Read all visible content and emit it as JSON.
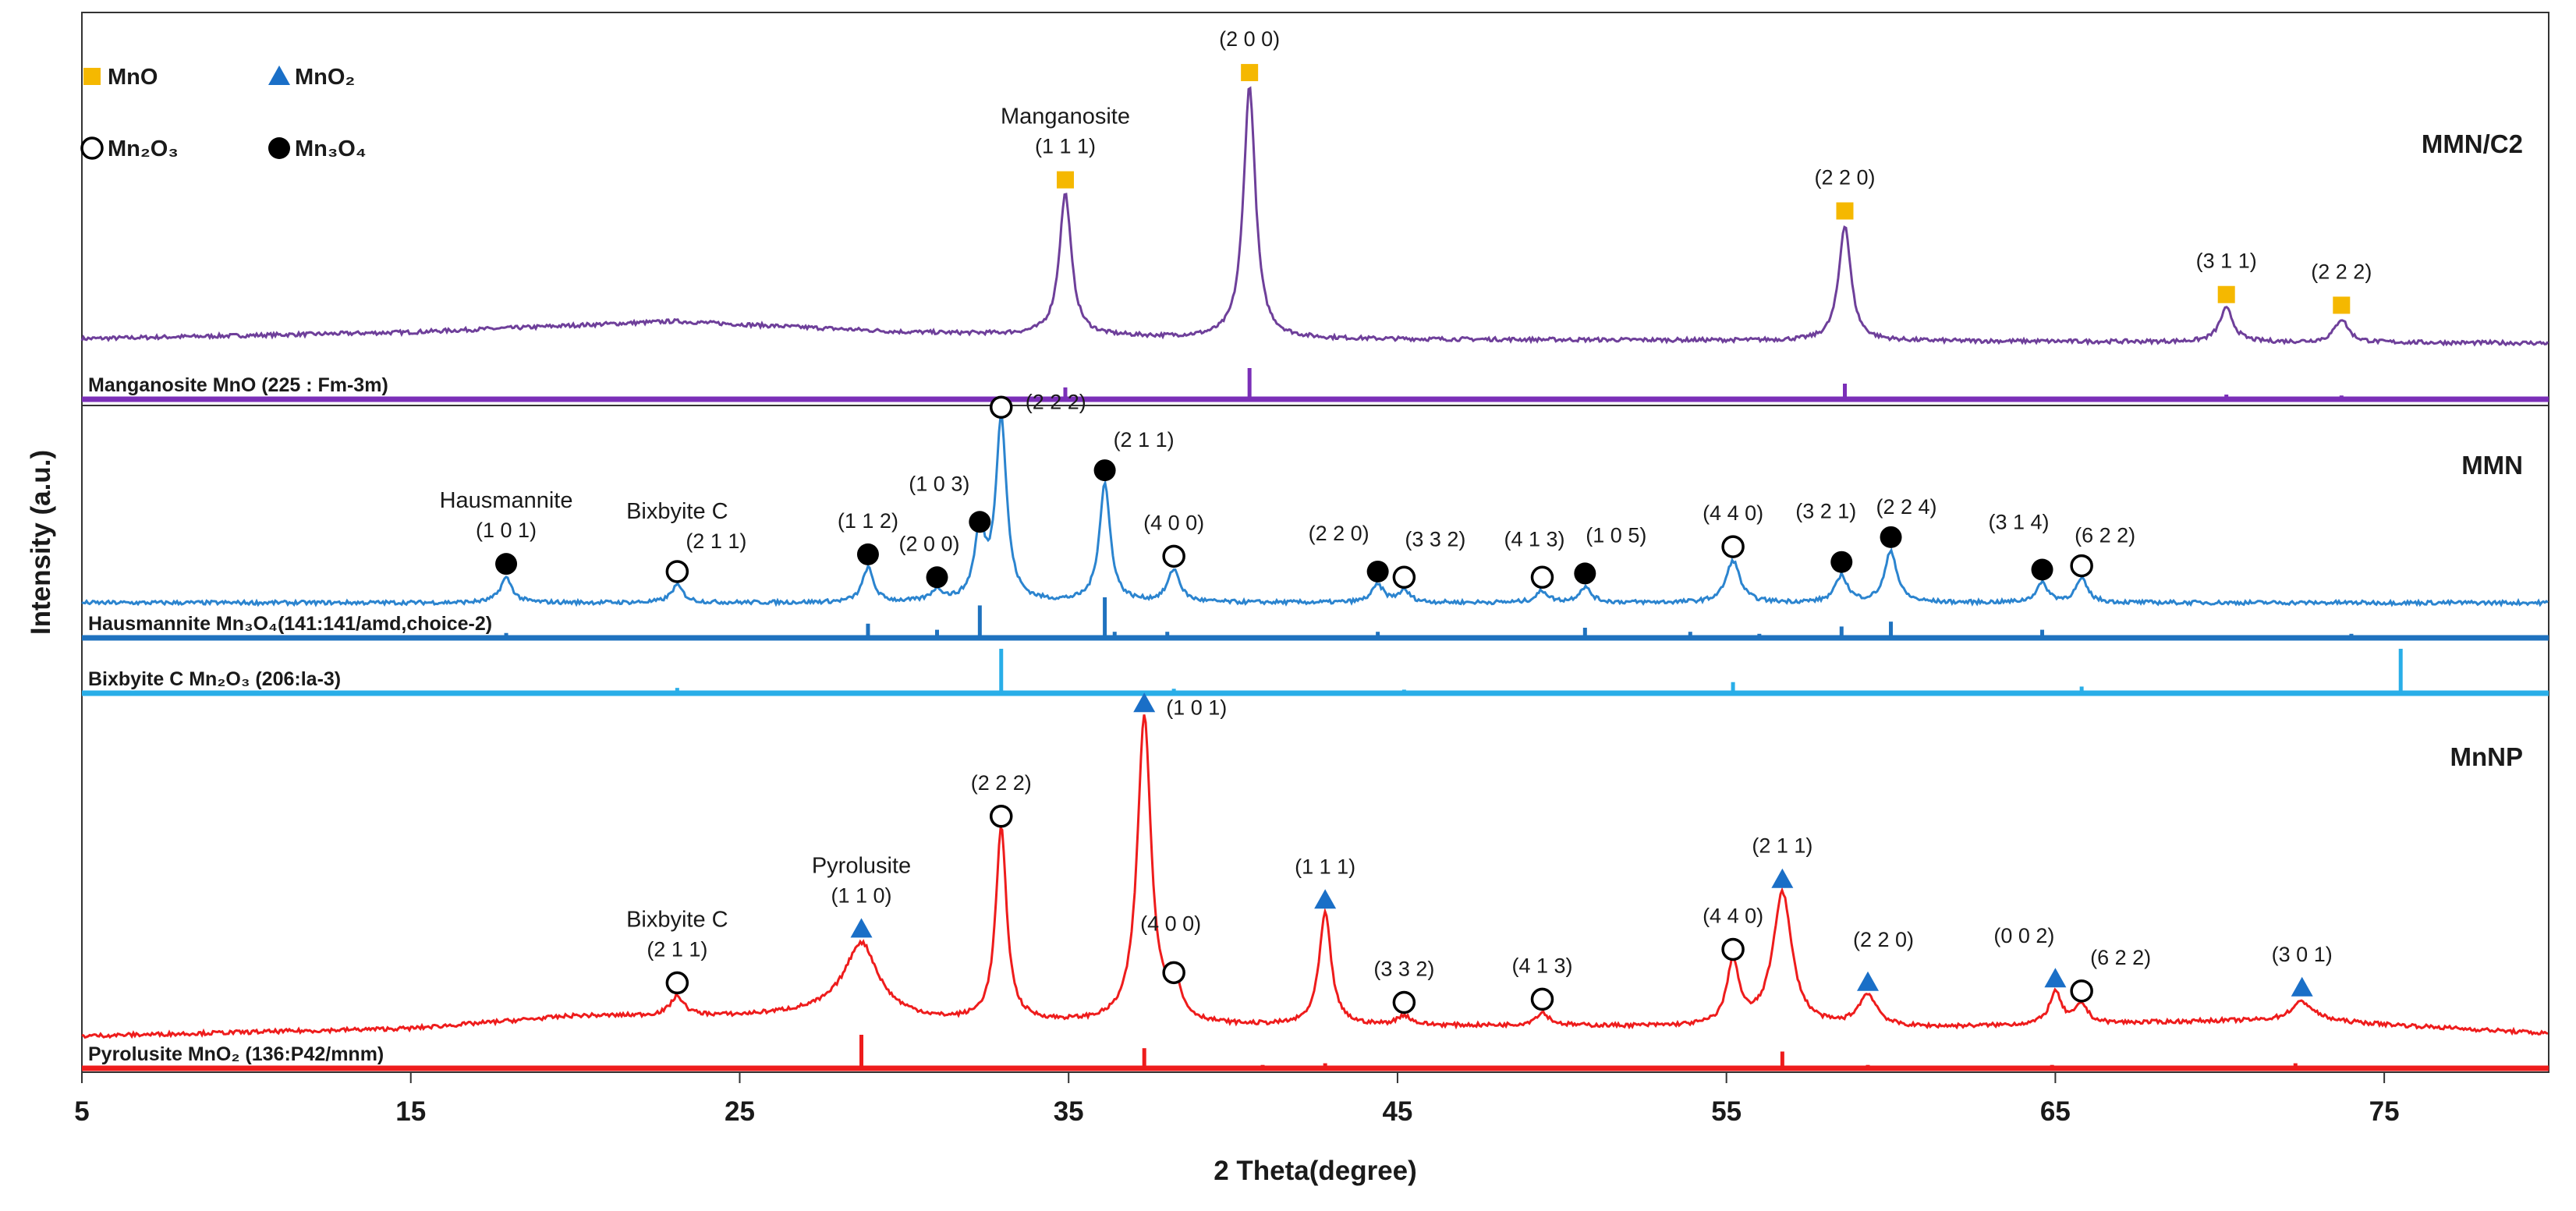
{
  "chart_data": {
    "type": "line",
    "xlabel": "2 Theta(degree)",
    "ylabel": "Intensity (a.u.)",
    "xlim": [
      5,
      80
    ],
    "x_ticks": [
      "5",
      "15",
      "25",
      "35",
      "45",
      "55",
      "65",
      "75"
    ],
    "grid": false,
    "legend": {
      "placement": "top-left",
      "entries": [
        {
          "label": "MnO",
          "symbol": "square",
          "color": "#f5b800"
        },
        {
          "label": "MnO₂",
          "symbol": "triangle",
          "color": "#1a6fc7"
        },
        {
          "label": "Mn₂O₃",
          "symbol": "open-circle",
          "color": "#000000"
        },
        {
          "label": "Mn₃O₄",
          "symbol": "filled-circle",
          "color": "#000000"
        }
      ]
    },
    "panels": [
      {
        "sample": "MMN/C2",
        "color": "#6e3f9a",
        "baseline": [
          {
            "x": 5,
            "y": 2
          },
          {
            "x": 15,
            "y": 5
          },
          {
            "x": 23,
            "y": 10
          },
          {
            "x": 30,
            "y": 5
          },
          {
            "x": 40,
            "y": 2
          },
          {
            "x": 60,
            "y": 1
          },
          {
            "x": 80,
            "y": 0
          }
        ],
        "peaks": [
          {
            "x": 34.9,
            "h": 55,
            "w": 0.22,
            "marker": "square",
            "label": "(1 1 1)",
            "phase": "Manganosite"
          },
          {
            "x": 40.5,
            "h": 98,
            "w": 0.22,
            "marker": "square",
            "label": "(2 0 0)"
          },
          {
            "x": 58.6,
            "h": 45,
            "w": 0.22,
            "marker": "square",
            "label": "(2 2 0)"
          },
          {
            "x": 70.2,
            "h": 13,
            "w": 0.25,
            "marker": "square",
            "label": "(3 1 1)"
          },
          {
            "x": 73.7,
            "h": 9,
            "w": 0.25,
            "marker": "square",
            "label": "(2 2 2)"
          }
        ],
        "references": [
          {
            "name": "Manganosite MnO (225 : Fm-3m)",
            "color": "#7b2fb8",
            "lines": [
              {
                "x": 34.9,
                "h": 38
              },
              {
                "x": 40.5,
                "h": 100
              },
              {
                "x": 58.6,
                "h": 50
              },
              {
                "x": 70.2,
                "h": 15
              },
              {
                "x": 73.7,
                "h": 12
              }
            ]
          }
        ]
      },
      {
        "sample": "MMN",
        "color": "#2b84cf",
        "baseline": [
          {
            "x": 5,
            "y": 0
          },
          {
            "x": 80,
            "y": 0
          }
        ],
        "peaks": [
          {
            "x": 17.9,
            "h": 13,
            "w": 0.22,
            "marker": "filled-circle",
            "label": "(1 0 1)",
            "phase": "Hausmannite"
          },
          {
            "x": 23.1,
            "h": 9,
            "w": 0.22,
            "marker": "open-circle",
            "label": "(2 1 1)",
            "phase": "Bixbyite C"
          },
          {
            "x": 28.9,
            "h": 18,
            "w": 0.2,
            "marker": "filled-circle",
            "label": "(1 1 2)"
          },
          {
            "x": 31.0,
            "h": 6,
            "w": 0.22,
            "marker": "filled-circle",
            "label": "(2 0 0)"
          },
          {
            "x": 32.3,
            "h": 35,
            "w": 0.2,
            "marker": "filled-circle",
            "label": "(1 0 3)"
          },
          {
            "x": 32.95,
            "h": 95,
            "w": 0.2,
            "marker": "open-circle",
            "label": "(2 2 2)"
          },
          {
            "x": 36.1,
            "h": 62,
            "w": 0.2,
            "marker": "filled-circle",
            "label": "(2 1 1)"
          },
          {
            "x": 38.2,
            "h": 17,
            "w": 0.22,
            "marker": "open-circle",
            "label": "(4 0 0)"
          },
          {
            "x": 44.4,
            "h": 9,
            "w": 0.22,
            "marker": "filled-circle",
            "label": "(2 2 0)"
          },
          {
            "x": 45.2,
            "h": 6,
            "w": 0.22,
            "marker": "open-circle",
            "label": "(3 3 2)"
          },
          {
            "x": 49.4,
            "h": 6,
            "w": 0.22,
            "marker": "open-circle",
            "label": "(4 1 3)"
          },
          {
            "x": 50.7,
            "h": 8,
            "w": 0.22,
            "marker": "filled-circle",
            "label": "(1 0 5)"
          },
          {
            "x": 55.2,
            "h": 22,
            "w": 0.25,
            "marker": "open-circle",
            "label": "(4 4 0)"
          },
          {
            "x": 58.5,
            "h": 14,
            "w": 0.22,
            "marker": "filled-circle",
            "label": "(3 2 1)"
          },
          {
            "x": 60.0,
            "h": 27,
            "w": 0.22,
            "marker": "filled-circle",
            "label": "(2 2 4)"
          },
          {
            "x": 64.6,
            "h": 10,
            "w": 0.22,
            "marker": "filled-circle",
            "label": "(3 1 4)"
          },
          {
            "x": 65.8,
            "h": 12,
            "w": 0.22,
            "marker": "open-circle",
            "label": "(6 2 2)"
          }
        ],
        "references": [
          {
            "name": "Hausmannite Mn₃O₄(141:141/amd,choice-2)",
            "color": "#1f72bf",
            "lines": [
              {
                "x": 17.9,
                "h": 12
              },
              {
                "x": 28.9,
                "h": 35
              },
              {
                "x": 31.0,
                "h": 20
              },
              {
                "x": 32.3,
                "h": 80
              },
              {
                "x": 36.1,
                "h": 100
              },
              {
                "x": 36.4,
                "h": 15
              },
              {
                "x": 38.0,
                "h": 15
              },
              {
                "x": 44.4,
                "h": 15
              },
              {
                "x": 50.7,
                "h": 25
              },
              {
                "x": 53.9,
                "h": 15
              },
              {
                "x": 56.0,
                "h": 10
              },
              {
                "x": 58.5,
                "h": 28
              },
              {
                "x": 60.0,
                "h": 40
              },
              {
                "x": 64.6,
                "h": 20
              },
              {
                "x": 74.0,
                "h": 10
              }
            ]
          },
          {
            "name": "Bixbyite C Mn₂O₃ (206:la-3)",
            "color": "#29aee8",
            "lines": [
              {
                "x": 23.1,
                "h": 12
              },
              {
                "x": 32.95,
                "h": 100
              },
              {
                "x": 38.2,
                "h": 10
              },
              {
                "x": 45.2,
                "h": 8
              },
              {
                "x": 49.4,
                "h": 6
              },
              {
                "x": 55.2,
                "h": 25
              },
              {
                "x": 65.8,
                "h": 15
              },
              {
                "x": 75.5,
                "h": 100
              }
            ]
          }
        ]
      },
      {
        "sample": "MnNP",
        "color": "#ee1c1c",
        "baseline": [
          {
            "x": 5,
            "y": 2
          },
          {
            "x": 15,
            "y": 5
          },
          {
            "x": 20,
            "y": 10
          },
          {
            "x": 25,
            "y": 10
          },
          {
            "x": 28,
            "y": 12
          },
          {
            "x": 31,
            "y": 8
          },
          {
            "x": 40,
            "y": 6
          },
          {
            "x": 50,
            "y": 6
          },
          {
            "x": 60,
            "y": 5
          },
          {
            "x": 70,
            "y": 8
          },
          {
            "x": 73,
            "y": 8
          },
          {
            "x": 80,
            "y": 3
          }
        ],
        "peaks": [
          {
            "x": 23.1,
            "h": 6,
            "w": 0.25,
            "marker": "open-circle",
            "label": "(2 1 1)",
            "phase": "Bixbyite C"
          },
          {
            "x": 28.7,
            "h": 22,
            "w": 0.6,
            "marker": "triangle",
            "label": "(1 1 0)",
            "phase": "Pyrolusite"
          },
          {
            "x": 32.95,
            "h": 60,
            "w": 0.2,
            "marker": "open-circle",
            "label": "(2 2 2)"
          },
          {
            "x": 37.3,
            "h": 96,
            "w": 0.25,
            "marker": "triangle",
            "label": "(1 0 1)"
          },
          {
            "x": 38.2,
            "h": 12,
            "w": 0.22,
            "marker": "open-circle",
            "label": "(4 0 0)"
          },
          {
            "x": 42.8,
            "h": 35,
            "w": 0.22,
            "marker": "triangle",
            "label": "(1 1 1)"
          },
          {
            "x": 45.2,
            "h": 3,
            "w": 0.25,
            "marker": "open-circle",
            "label": "(3 3 2)"
          },
          {
            "x": 49.4,
            "h": 4,
            "w": 0.25,
            "marker": "open-circle",
            "label": "(4 1 3)"
          },
          {
            "x": 55.2,
            "h": 20,
            "w": 0.22,
            "marker": "open-circle",
            "label": "(4 4 0)"
          },
          {
            "x": 56.7,
            "h": 42,
            "w": 0.35,
            "marker": "triangle",
            "label": "(2 1 1)"
          },
          {
            "x": 59.3,
            "h": 10,
            "w": 0.35,
            "marker": "triangle",
            "label": "(2 2 0)"
          },
          {
            "x": 65.0,
            "h": 10,
            "w": 0.22,
            "marker": "triangle",
            "label": "(0 0 2)"
          },
          {
            "x": 65.8,
            "h": 6,
            "w": 0.22,
            "marker": "open-circle",
            "label": "(6 2 2)"
          },
          {
            "x": 72.5,
            "h": 6,
            "w": 0.4,
            "marker": "triangle",
            "label": "(3 0 1)"
          }
        ],
        "references": [
          {
            "name": "Pyrolusite MnO₂ (136:P42/mnm)",
            "color": "#ee1c1c",
            "lines": [
              {
                "x": 28.7,
                "h": 100
              },
              {
                "x": 37.3,
                "h": 60
              },
              {
                "x": 40.9,
                "h": 10
              },
              {
                "x": 42.8,
                "h": 15
              },
              {
                "x": 56.7,
                "h": 50
              },
              {
                "x": 59.3,
                "h": 10
              },
              {
                "x": 64.9,
                "h": 10
              },
              {
                "x": 67.1,
                "h": 8
              },
              {
                "x": 72.3,
                "h": 15
              }
            ]
          }
        ]
      }
    ]
  }
}
